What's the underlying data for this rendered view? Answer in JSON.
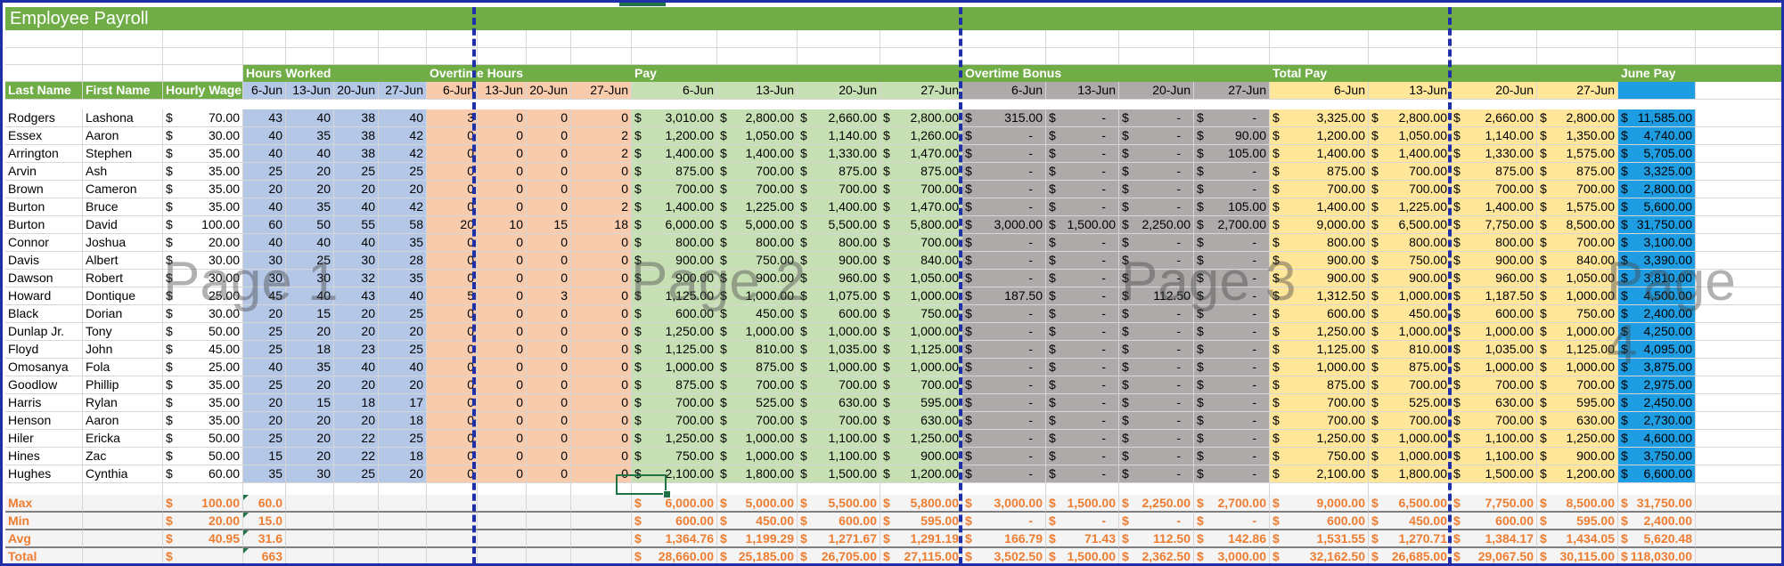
{
  "title": "Employee Payroll",
  "sections": {
    "hours_worked": "Hours Worked",
    "overtime_hours": "Overtime Hours",
    "pay": "Pay",
    "overtime_bonus": "Overtime Bonus",
    "total_pay": "Total Pay",
    "june_pay": "June Pay"
  },
  "headers": {
    "last_name": "Last Name",
    "first_name": "First Name",
    "hourly_wage": "Hourly Wage",
    "dates": [
      "6-Jun",
      "13-Jun",
      "20-Jun",
      "27-Jun"
    ]
  },
  "employees": [
    {
      "last": "Rodgers",
      "first": "Lashona",
      "wage": "70.00",
      "hours": [
        "43",
        "40",
        "38",
        "40"
      ],
      "ot": [
        "3",
        "0",
        "0",
        "0"
      ],
      "pay": [
        "3,010.00",
        "2,800.00",
        "2,660.00",
        "2,800.00"
      ],
      "bonus": [
        "315.00",
        "-",
        "-",
        "-"
      ],
      "total": [
        "3,325.00",
        "2,800.00",
        "2,660.00",
        "2,800.00"
      ],
      "june": "11,585.00"
    },
    {
      "last": "Essex",
      "first": "Aaron",
      "wage": "30.00",
      "hours": [
        "40",
        "35",
        "38",
        "42"
      ],
      "ot": [
        "0",
        "0",
        "0",
        "2"
      ],
      "pay": [
        "1,200.00",
        "1,050.00",
        "1,140.00",
        "1,260.00"
      ],
      "bonus": [
        "-",
        "-",
        "-",
        "90.00"
      ],
      "total": [
        "1,200.00",
        "1,050.00",
        "1,140.00",
        "1,350.00"
      ],
      "june": "4,740.00"
    },
    {
      "last": "Arrington",
      "first": "Stephen",
      "wage": "35.00",
      "hours": [
        "40",
        "40",
        "38",
        "42"
      ],
      "ot": [
        "0",
        "0",
        "0",
        "2"
      ],
      "pay": [
        "1,400.00",
        "1,400.00",
        "1,330.00",
        "1,470.00"
      ],
      "bonus": [
        "-",
        "-",
        "-",
        "105.00"
      ],
      "total": [
        "1,400.00",
        "1,400.00",
        "1,330.00",
        "1,575.00"
      ],
      "june": "5,705.00"
    },
    {
      "last": "Arvin",
      "first": "Ash",
      "wage": "35.00",
      "hours": [
        "25",
        "20",
        "25",
        "25"
      ],
      "ot": [
        "0",
        "0",
        "0",
        "0"
      ],
      "pay": [
        "875.00",
        "700.00",
        "875.00",
        "875.00"
      ],
      "bonus": [
        "-",
        "-",
        "-",
        "-"
      ],
      "total": [
        "875.00",
        "700.00",
        "875.00",
        "875.00"
      ],
      "june": "3,325.00"
    },
    {
      "last": "Brown",
      "first": "Cameron",
      "wage": "35.00",
      "hours": [
        "20",
        "20",
        "20",
        "20"
      ],
      "ot": [
        "0",
        "0",
        "0",
        "0"
      ],
      "pay": [
        "700.00",
        "700.00",
        "700.00",
        "700.00"
      ],
      "bonus": [
        "-",
        "-",
        "-",
        "-"
      ],
      "total": [
        "700.00",
        "700.00",
        "700.00",
        "700.00"
      ],
      "june": "2,800.00"
    },
    {
      "last": "Burton",
      "first": "Bruce",
      "wage": "35.00",
      "hours": [
        "40",
        "35",
        "40",
        "42"
      ],
      "ot": [
        "0",
        "0",
        "0",
        "2"
      ],
      "pay": [
        "1,400.00",
        "1,225.00",
        "1,400.00",
        "1,470.00"
      ],
      "bonus": [
        "-",
        "-",
        "-",
        "105.00"
      ],
      "total": [
        "1,400.00",
        "1,225.00",
        "1,400.00",
        "1,575.00"
      ],
      "june": "5,600.00"
    },
    {
      "last": "Burton",
      "first": "David",
      "wage": "100.00",
      "hours": [
        "60",
        "50",
        "55",
        "58"
      ],
      "ot": [
        "20",
        "10",
        "15",
        "18"
      ],
      "pay": [
        "6,000.00",
        "5,000.00",
        "5,500.00",
        "5,800.00"
      ],
      "bonus": [
        "3,000.00",
        "1,500.00",
        "2,250.00",
        "2,700.00"
      ],
      "total": [
        "9,000.00",
        "6,500.00",
        "7,750.00",
        "8,500.00"
      ],
      "june": "31,750.00"
    },
    {
      "last": "Connor",
      "first": "Joshua",
      "wage": "20.00",
      "hours": [
        "40",
        "40",
        "40",
        "35"
      ],
      "ot": [
        "0",
        "0",
        "0",
        "0"
      ],
      "pay": [
        "800.00",
        "800.00",
        "800.00",
        "700.00"
      ],
      "bonus": [
        "-",
        "-",
        "-",
        "-"
      ],
      "total": [
        "800.00",
        "800.00",
        "800.00",
        "700.00"
      ],
      "june": "3,100.00"
    },
    {
      "last": "Davis",
      "first": "Albert",
      "wage": "30.00",
      "hours": [
        "30",
        "25",
        "30",
        "28"
      ],
      "ot": [
        "0",
        "0",
        "0",
        "0"
      ],
      "pay": [
        "900.00",
        "750.00",
        "900.00",
        "840.00"
      ],
      "bonus": [
        "-",
        "-",
        "-",
        "-"
      ],
      "total": [
        "900.00",
        "750.00",
        "900.00",
        "840.00"
      ],
      "june": "3,390.00"
    },
    {
      "last": "Dawson",
      "first": "Robert",
      "wage": "30.00",
      "hours": [
        "30",
        "30",
        "32",
        "35"
      ],
      "ot": [
        "0",
        "0",
        "0",
        "0"
      ],
      "pay": [
        "900.00",
        "900.00",
        "960.00",
        "1,050.00"
      ],
      "bonus": [
        "-",
        "-",
        "-",
        "-"
      ],
      "total": [
        "900.00",
        "900.00",
        "960.00",
        "1,050.00"
      ],
      "june": "3,810.00"
    },
    {
      "last": "Howard",
      "first": "Dontique",
      "wage": "25.00",
      "hours": [
        "45",
        "40",
        "43",
        "40"
      ],
      "ot": [
        "5",
        "0",
        "3",
        "0"
      ],
      "pay": [
        "1,125.00",
        "1,000.00",
        "1,075.00",
        "1,000.00"
      ],
      "bonus": [
        "187.50",
        "-",
        "112.50",
        "-"
      ],
      "total": [
        "1,312.50",
        "1,000.00",
        "1,187.50",
        "1,000.00"
      ],
      "june": "4,500.00"
    },
    {
      "last": "Black",
      "first": "Dorian",
      "wage": "30.00",
      "hours": [
        "20",
        "15",
        "20",
        "25"
      ],
      "ot": [
        "0",
        "0",
        "0",
        "0"
      ],
      "pay": [
        "600.00",
        "450.00",
        "600.00",
        "750.00"
      ],
      "bonus": [
        "-",
        "-",
        "-",
        "-"
      ],
      "total": [
        "600.00",
        "450.00",
        "600.00",
        "750.00"
      ],
      "june": "2,400.00"
    },
    {
      "last": "Dunlap Jr.",
      "first": "Tony",
      "wage": "50.00",
      "hours": [
        "25",
        "20",
        "20",
        "20"
      ],
      "ot": [
        "0",
        "0",
        "0",
        "0"
      ],
      "pay": [
        "1,250.00",
        "1,000.00",
        "1,000.00",
        "1,000.00"
      ],
      "bonus": [
        "-",
        "-",
        "-",
        "-"
      ],
      "total": [
        "1,250.00",
        "1,000.00",
        "1,000.00",
        "1,000.00"
      ],
      "june": "4,250.00"
    },
    {
      "last": "Floyd",
      "first": "John",
      "wage": "45.00",
      "hours": [
        "25",
        "18",
        "23",
        "25"
      ],
      "ot": [
        "0",
        "0",
        "0",
        "0"
      ],
      "pay": [
        "1,125.00",
        "810.00",
        "1,035.00",
        "1,125.00"
      ],
      "bonus": [
        "-",
        "-",
        "-",
        "-"
      ],
      "total": [
        "1,125.00",
        "810.00",
        "1,035.00",
        "1,125.00"
      ],
      "june": "4,095.00"
    },
    {
      "last": "Omosanya",
      "first": "Fola",
      "wage": "25.00",
      "hours": [
        "40",
        "35",
        "40",
        "40"
      ],
      "ot": [
        "0",
        "0",
        "0",
        "0"
      ],
      "pay": [
        "1,000.00",
        "875.00",
        "1,000.00",
        "1,000.00"
      ],
      "bonus": [
        "-",
        "-",
        "-",
        "-"
      ],
      "total": [
        "1,000.00",
        "875.00",
        "1,000.00",
        "1,000.00"
      ],
      "june": "3,875.00"
    },
    {
      "last": "Goodlow",
      "first": "Phillip",
      "wage": "35.00",
      "hours": [
        "25",
        "20",
        "20",
        "20"
      ],
      "ot": [
        "0",
        "0",
        "0",
        "0"
      ],
      "pay": [
        "875.00",
        "700.00",
        "700.00",
        "700.00"
      ],
      "bonus": [
        "-",
        "-",
        "-",
        "-"
      ],
      "total": [
        "875.00",
        "700.00",
        "700.00",
        "700.00"
      ],
      "june": "2,975.00"
    },
    {
      "last": "Harris",
      "first": "Rylan",
      "wage": "35.00",
      "hours": [
        "20",
        "15",
        "18",
        "17"
      ],
      "ot": [
        "0",
        "0",
        "0",
        "0"
      ],
      "pay": [
        "700.00",
        "525.00",
        "630.00",
        "595.00"
      ],
      "bonus": [
        "-",
        "-",
        "-",
        "-"
      ],
      "total": [
        "700.00",
        "525.00",
        "630.00",
        "595.00"
      ],
      "june": "2,450.00"
    },
    {
      "last": "Henson",
      "first": "Aaron",
      "wage": "35.00",
      "hours": [
        "20",
        "20",
        "20",
        "18"
      ],
      "ot": [
        "0",
        "0",
        "0",
        "0"
      ],
      "pay": [
        "700.00",
        "700.00",
        "700.00",
        "630.00"
      ],
      "bonus": [
        "-",
        "-",
        "-",
        "-"
      ],
      "total": [
        "700.00",
        "700.00",
        "700.00",
        "630.00"
      ],
      "june": "2,730.00"
    },
    {
      "last": "Hiler",
      "first": "Ericka",
      "wage": "50.00",
      "hours": [
        "25",
        "20",
        "22",
        "25"
      ],
      "ot": [
        "0",
        "0",
        "0",
        "0"
      ],
      "pay": [
        "1,250.00",
        "1,000.00",
        "1,100.00",
        "1,250.00"
      ],
      "bonus": [
        "-",
        "-",
        "-",
        "-"
      ],
      "total": [
        "1,250.00",
        "1,000.00",
        "1,100.00",
        "1,250.00"
      ],
      "june": "4,600.00"
    },
    {
      "last": "Hines",
      "first": "Zac",
      "wage": "50.00",
      "hours": [
        "15",
        "20",
        "22",
        "18"
      ],
      "ot": [
        "0",
        "0",
        "0",
        "0"
      ],
      "pay": [
        "750.00",
        "1,000.00",
        "1,100.00",
        "900.00"
      ],
      "bonus": [
        "-",
        "-",
        "-",
        "-"
      ],
      "total": [
        "750.00",
        "1,000.00",
        "1,100.00",
        "900.00"
      ],
      "june": "3,750.00"
    },
    {
      "last": "Hughes",
      "first": "Cynthia",
      "wage": "60.00",
      "hours": [
        "35",
        "30",
        "25",
        "20"
      ],
      "ot": [
        "0",
        "0",
        "0",
        "0"
      ],
      "pay": [
        "2,100.00",
        "1,800.00",
        "1,500.00",
        "1,200.00"
      ],
      "bonus": [
        "-",
        "-",
        "-",
        "-"
      ],
      "total": [
        "2,100.00",
        "1,800.00",
        "1,500.00",
        "1,200.00"
      ],
      "june": "6,600.00"
    }
  ],
  "stats": [
    {
      "label": "Max",
      "wage": "100.00",
      "hours": "60.0",
      "pay": [
        "6,000.00",
        "5,000.00",
        "5,500.00",
        "5,800.00"
      ],
      "bonus": [
        "3,000.00",
        "1,500.00",
        "2,250.00",
        "2,700.00"
      ],
      "total": [
        "9,000.00",
        "6,500.00",
        "7,750.00",
        "8,500.00"
      ],
      "june": "31,750.00"
    },
    {
      "label": "Min",
      "wage": "20.00",
      "hours": "15.0",
      "pay": [
        "600.00",
        "450.00",
        "600.00",
        "595.00"
      ],
      "bonus": [
        "-",
        "-",
        "-",
        "-"
      ],
      "total": [
        "600.00",
        "450.00",
        "600.00",
        "595.00"
      ],
      "june": "2,400.00"
    },
    {
      "label": "Avg",
      "wage": "40.95",
      "hours": "31.6",
      "pay": [
        "1,364.76",
        "1,199.29",
        "1,271.67",
        "1,291.19"
      ],
      "bonus": [
        "166.79",
        "71.43",
        "112.50",
        "142.86"
      ],
      "total": [
        "1,531.55",
        "1,270.71",
        "1,384.17",
        "1,434.05"
      ],
      "june": "5,620.48"
    },
    {
      "label": "Total",
      "wage": "",
      "hours": "663",
      "pay": [
        "28,660.00",
        "25,185.00",
        "26,705.00",
        "27,115.00"
      ],
      "bonus": [
        "3,502.50",
        "1,500.00",
        "2,362.50",
        "3,000.00"
      ],
      "total": [
        "32,162.50",
        "26,685.00",
        "29,067.50",
        "30,115.00"
      ],
      "june": "118,030.00"
    }
  ],
  "currency_symbol": "$",
  "page_labels": [
    "Page 1",
    "Page 2",
    "Page 3",
    "Page 4"
  ],
  "colors": {
    "header_green": "#70ad47",
    "hours_blue": "#b4c7e7",
    "overtime_salmon": "#f8cbad",
    "pay_green": "#c6e0b4",
    "bonus_gray": "#aeaaaa",
    "total_yellow": "#ffe699",
    "june_cyan": "#1f9de3",
    "stats_orange": "#ed7d31",
    "page_break_blue": "#1f2fa8"
  }
}
